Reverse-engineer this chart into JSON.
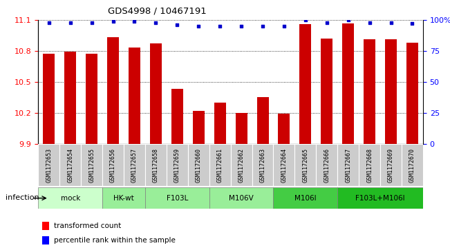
{
  "title": "GDS4998 / 10467191",
  "samples": [
    "GSM1172653",
    "GSM1172654",
    "GSM1172655",
    "GSM1172656",
    "GSM1172657",
    "GSM1172658",
    "GSM1172659",
    "GSM1172660",
    "GSM1172661",
    "GSM1172662",
    "GSM1172663",
    "GSM1172664",
    "GSM1172665",
    "GSM1172666",
    "GSM1172667",
    "GSM1172668",
    "GSM1172669",
    "GSM1172670"
  ],
  "bar_values": [
    10.77,
    10.79,
    10.77,
    10.93,
    10.83,
    10.87,
    10.43,
    10.22,
    10.3,
    10.2,
    10.35,
    10.19,
    11.06,
    10.92,
    11.07,
    10.91,
    10.91,
    10.88
  ],
  "percentile_values": [
    98,
    98,
    98,
    99,
    99,
    98,
    96,
    95,
    95,
    95,
    95,
    95,
    100,
    98,
    100,
    98,
    98,
    97
  ],
  "ylim_left": [
    9.9,
    11.1
  ],
  "ylim_right": [
    0,
    100
  ],
  "right_ticks": [
    0,
    25,
    50,
    75,
    100
  ],
  "right_tick_labels": [
    "0",
    "25",
    "50",
    "75",
    "100%"
  ],
  "left_ticks": [
    9.9,
    10.2,
    10.5,
    10.8,
    11.1
  ],
  "bar_color": "#cc0000",
  "dot_color": "#0000cc",
  "groups": [
    {
      "label": "mock",
      "start": 0,
      "end": 3,
      "color": "#ccffcc"
    },
    {
      "label": "HK-wt",
      "start": 3,
      "end": 5,
      "color": "#99ee99"
    },
    {
      "label": "F103L",
      "start": 5,
      "end": 8,
      "color": "#99ee99"
    },
    {
      "label": "M106V",
      "start": 8,
      "end": 11,
      "color": "#99ee99"
    },
    {
      "label": "M106I",
      "start": 11,
      "end": 14,
      "color": "#44cc44"
    },
    {
      "label": "F103L+M106I",
      "start": 14,
      "end": 18,
      "color": "#22bb22"
    }
  ],
  "sample_box_color": "#cccccc",
  "infection_label": "infection"
}
